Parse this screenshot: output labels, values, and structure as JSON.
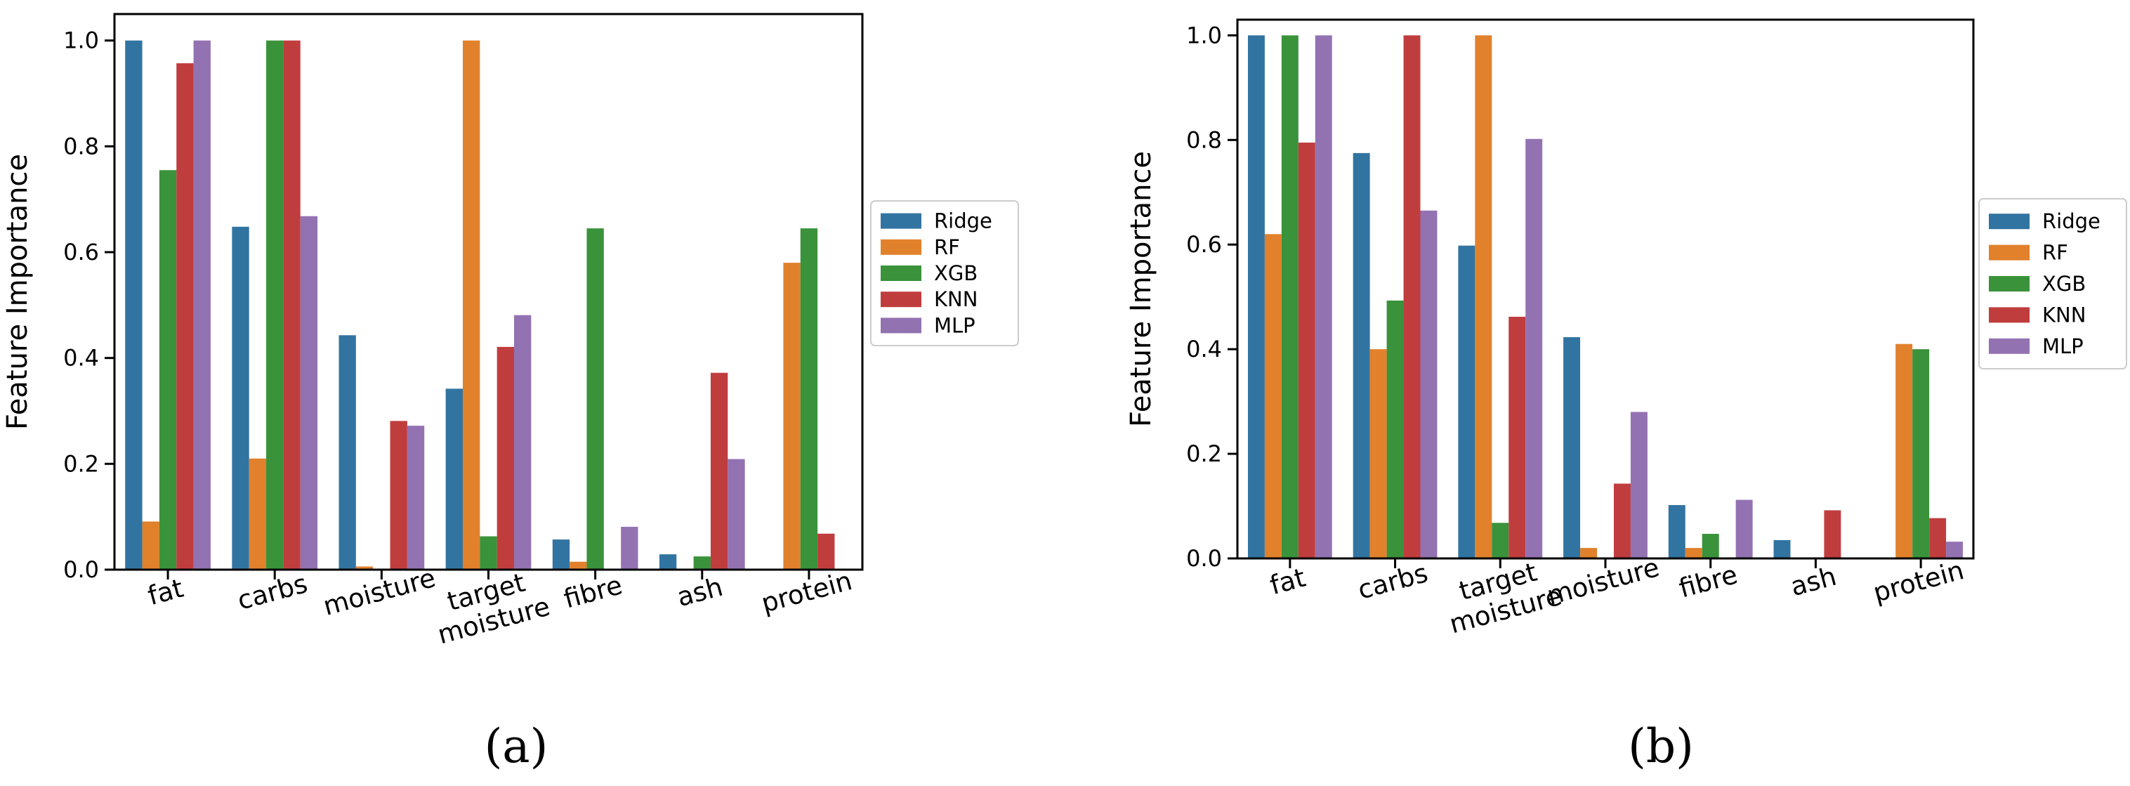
{
  "chart_data": [
    {
      "type": "bar",
      "panel_label": "(a)",
      "title": "",
      "xlabel": "",
      "ylabel": "Feature Importance",
      "ylim": [
        0,
        1.05
      ],
      "yticks": [
        "0.0",
        "0.2",
        "0.4",
        "0.6",
        "0.8",
        "1.0"
      ],
      "categories": [
        "fat",
        "carbs",
        "moisture",
        "target moisture",
        "fibre",
        "ash",
        "protein"
      ],
      "category_lines": [
        [
          "fat"
        ],
        [
          "carbs"
        ],
        [
          "moisture"
        ],
        [
          "target",
          "moisture"
        ],
        [
          "fibre"
        ],
        [
          "ash"
        ],
        [
          "protein"
        ]
      ],
      "legend_position": "right",
      "series": [
        {
          "name": "Ridge",
          "color": "#3274a1",
          "values": [
            1.0,
            0.648,
            0.443,
            0.342,
            0.057,
            0.029,
            0.0
          ]
        },
        {
          "name": "RF",
          "color": "#e1812c",
          "values": [
            0.091,
            0.21,
            0.006,
            1.0,
            0.015,
            0.0,
            0.58
          ]
        },
        {
          "name": "XGB",
          "color": "#3a923a",
          "values": [
            0.755,
            1.0,
            0.0,
            0.063,
            0.645,
            0.025,
            0.645
          ]
        },
        {
          "name": "KNN",
          "color": "#c03d3e",
          "values": [
            0.957,
            1.0,
            0.281,
            0.421,
            0.0,
            0.372,
            0.068
          ]
        },
        {
          "name": "MLP",
          "color": "#9372b2",
          "values": [
            1.0,
            0.668,
            0.272,
            0.481,
            0.081,
            0.209,
            0.0
          ]
        }
      ]
    },
    {
      "type": "bar",
      "panel_label": "(b)",
      "title": "",
      "xlabel": "",
      "ylabel": "Feature Importance",
      "ylim": [
        0,
        1.03
      ],
      "yticks": [
        "0.0",
        "0.2",
        "0.4",
        "0.6",
        "0.8",
        "1.0"
      ],
      "categories": [
        "fat",
        "carbs",
        "target moisture",
        "moisture",
        "fibre",
        "ash",
        "protein"
      ],
      "category_lines": [
        [
          "fat"
        ],
        [
          "carbs"
        ],
        [
          "target",
          "moisture"
        ],
        [
          "moisture"
        ],
        [
          "fibre"
        ],
        [
          "ash"
        ],
        [
          "protein"
        ]
      ],
      "legend_position": "right",
      "series": [
        {
          "name": "Ridge",
          "color": "#3274a1",
          "values": [
            1.0,
            0.775,
            0.598,
            0.423,
            0.102,
            0.035,
            0.0
          ]
        },
        {
          "name": "RF",
          "color": "#e1812c",
          "values": [
            0.62,
            0.4,
            1.0,
            0.02,
            0.02,
            0.0,
            0.41
          ]
        },
        {
          "name": "XGB",
          "color": "#3a923a",
          "values": [
            1.0,
            0.493,
            0.068,
            0.0,
            0.047,
            0.0,
            0.4
          ]
        },
        {
          "name": "KNN",
          "color": "#c03d3e",
          "values": [
            0.795,
            1.0,
            0.462,
            0.143,
            0.0,
            0.092,
            0.077
          ]
        },
        {
          "name": "MLP",
          "color": "#9372b2",
          "values": [
            1.0,
            0.665,
            0.802,
            0.28,
            0.112,
            0.0,
            0.032
          ]
        }
      ]
    }
  ]
}
